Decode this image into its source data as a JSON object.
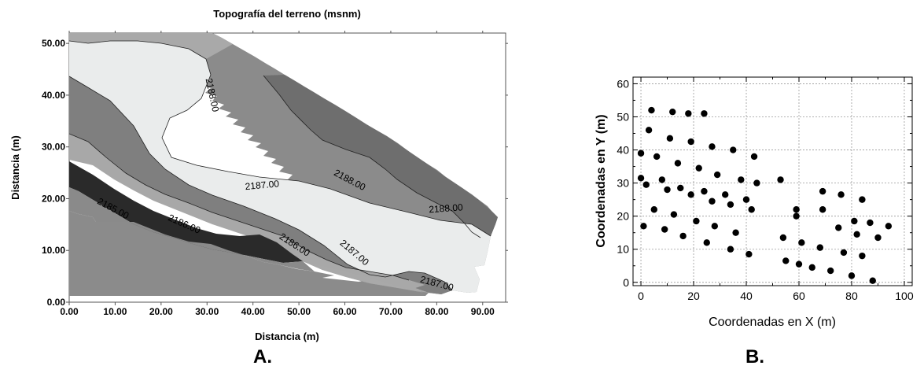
{
  "chart_data": [
    {
      "type": "contour",
      "title": "Topografía del terreno (msnm)",
      "xlabel": "Distancia (m)",
      "ylabel": "Distancia (m)",
      "xlim": [
        0,
        95
      ],
      "ylim": [
        0,
        52
      ],
      "xticks": [
        "0.00",
        "10.00",
        "20.00",
        "30.00",
        "40.00",
        "50.00",
        "60.00",
        "70.00",
        "80.00",
        "90.00"
      ],
      "yticks": [
        "0.00",
        "10.00",
        "20.00",
        "30.00",
        "40.00",
        "50.00"
      ],
      "contour_labels": [
        {
          "text": "2188.00",
          "x": 31,
          "y": 40,
          "angle": 78
        },
        {
          "text": "2187.00",
          "x": 42,
          "y": 22.5,
          "angle": -5
        },
        {
          "text": "2188.00",
          "x": 61,
          "y": 23.5,
          "angle": 28
        },
        {
          "text": "2188.00",
          "x": 82,
          "y": 18,
          "angle": -4
        },
        {
          "text": "2185.00",
          "x": 9.5,
          "y": 18,
          "angle": 28
        },
        {
          "text": "2186.00",
          "x": 25,
          "y": 15,
          "angle": 24
        },
        {
          "text": "2186.00",
          "x": 49,
          "y": 11,
          "angle": 33
        },
        {
          "text": "2187.00",
          "x": 62,
          "y": 9.5,
          "angle": 40
        },
        {
          "text": "2187.00",
          "x": 80,
          "y": 3.5,
          "angle": 15
        }
      ],
      "panel_label": "A."
    },
    {
      "type": "scatter",
      "xlabel": "Coordenadas en X (m)",
      "ylabel": "Coordenadas en Y (m)",
      "xlim": [
        -3,
        103
      ],
      "ylim": [
        -1,
        62
      ],
      "xticks": [
        0,
        20,
        40,
        60,
        80,
        100
      ],
      "yticks": [
        0,
        10,
        20,
        30,
        40,
        50,
        60
      ],
      "grid": true,
      "points": [
        [
          0,
          39
        ],
        [
          0,
          31.5
        ],
        [
          1,
          17
        ],
        [
          2,
          29.5
        ],
        [
          3,
          46
        ],
        [
          4,
          52
        ],
        [
          5,
          22
        ],
        [
          6,
          38
        ],
        [
          8,
          31
        ],
        [
          9,
          16
        ],
        [
          10,
          28
        ],
        [
          11,
          43.5
        ],
        [
          12,
          51.5
        ],
        [
          12.5,
          20.5
        ],
        [
          14,
          36
        ],
        [
          15,
          28.5
        ],
        [
          16,
          14
        ],
        [
          18,
          51
        ],
        [
          19,
          26.5
        ],
        [
          19,
          42.5
        ],
        [
          21,
          18.5
        ],
        [
          22,
          34.5
        ],
        [
          24,
          27.5
        ],
        [
          24,
          51
        ],
        [
          25,
          12
        ],
        [
          27,
          24.5
        ],
        [
          27,
          41
        ],
        [
          28,
          17
        ],
        [
          29,
          32.5
        ],
        [
          32,
          26.5
        ],
        [
          34,
          10
        ],
        [
          34,
          23.5
        ],
        [
          35,
          40
        ],
        [
          36,
          15
        ],
        [
          38,
          31
        ],
        [
          40,
          25
        ],
        [
          41,
          8.5
        ],
        [
          42,
          22
        ],
        [
          43,
          38
        ],
        [
          44,
          30
        ],
        [
          53,
          31
        ],
        [
          54,
          13.5
        ],
        [
          55,
          6.5
        ],
        [
          59,
          20
        ],
        [
          59,
          22
        ],
        [
          60,
          5.5
        ],
        [
          61,
          12
        ],
        [
          65,
          4.5
        ],
        [
          68,
          10.5
        ],
        [
          69,
          22
        ],
        [
          69,
          27.5
        ],
        [
          72,
          3.5
        ],
        [
          75,
          16.5
        ],
        [
          76,
          26.5
        ],
        [
          77,
          9
        ],
        [
          80,
          2
        ],
        [
          81,
          18.5
        ],
        [
          82,
          14.5
        ],
        [
          84,
          8
        ],
        [
          84,
          25
        ],
        [
          87,
          18
        ],
        [
          88,
          0.5
        ],
        [
          90,
          13.5
        ],
        [
          94,
          17
        ]
      ],
      "panel_label": "B."
    }
  ]
}
